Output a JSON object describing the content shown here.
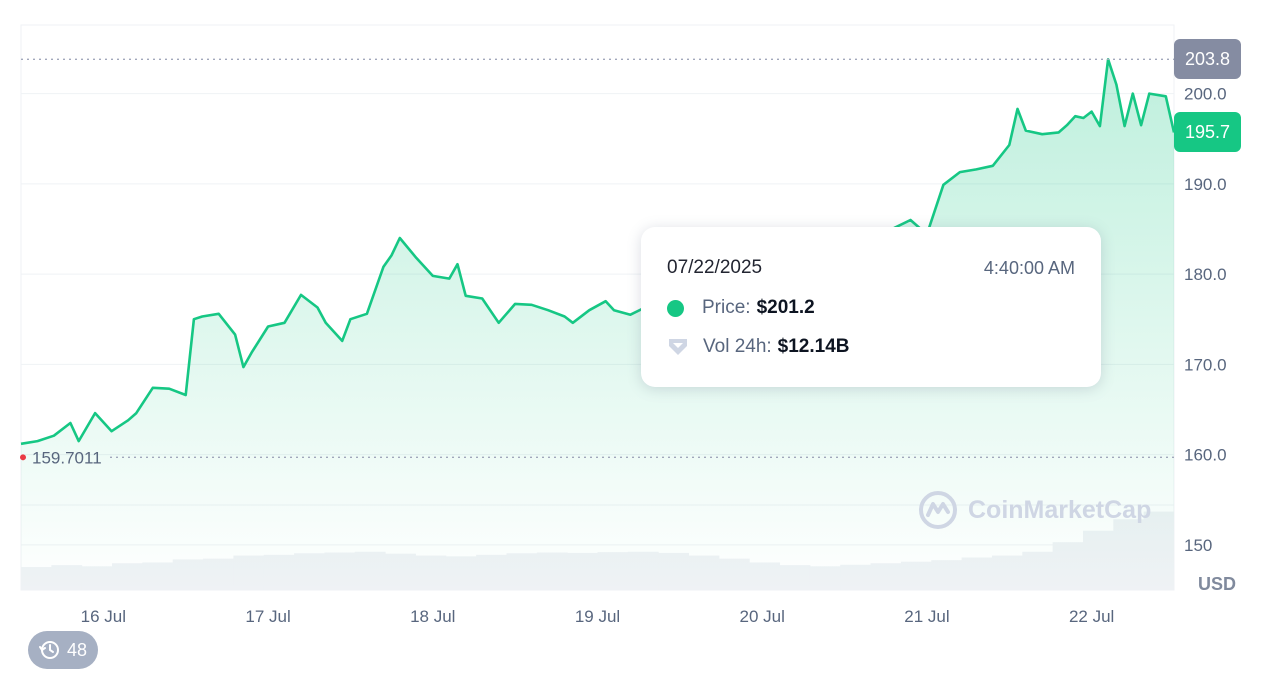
{
  "chart_data": {
    "type": "area",
    "title": "",
    "xlabel": "",
    "ylabel": "",
    "unit_label": "USD",
    "ylim": [
      145,
      207.6
    ],
    "y_ticks": [
      "150",
      "160.0",
      "170.0",
      "180.0",
      "190.0",
      "200.0"
    ],
    "y_tick_values": [
      150,
      160,
      170,
      180,
      190,
      200
    ],
    "x_tick_labels": [
      "16 Jul",
      "17 Jul",
      "18 Jul",
      "19 Jul",
      "20 Jul",
      "21 Jul",
      "22 Jul"
    ],
    "x_tick_positions": [
      0.5,
      1.5,
      2.5,
      3.5,
      4.5,
      5.5,
      6.5
    ],
    "xlim": [
      0,
      7.0
    ],
    "series": [
      {
        "x": [
          0.0,
          0.1,
          0.2,
          0.3,
          0.35,
          0.45,
          0.55,
          0.65,
          0.7,
          0.8,
          0.9,
          1.0,
          1.05,
          1.1,
          1.2,
          1.3,
          1.35,
          1.4,
          1.5,
          1.6,
          1.7,
          1.8,
          1.85,
          1.95,
          2.0,
          2.1,
          2.2,
          2.25,
          2.3,
          2.4,
          2.5,
          2.6,
          2.65,
          2.7,
          2.8,
          2.9,
          3.0,
          3.1,
          3.2,
          3.3,
          3.35,
          3.45,
          3.55,
          3.6,
          3.7,
          3.8,
          3.9,
          4.0,
          4.1,
          4.2,
          4.3,
          4.4,
          4.5,
          4.6,
          4.7,
          4.8,
          4.9,
          5.0,
          5.1,
          5.2,
          5.3,
          5.4,
          5.5,
          5.6,
          5.7,
          5.8,
          5.9,
          6.0,
          6.05,
          6.1,
          6.2,
          6.3,
          6.35,
          6.4,
          6.45,
          6.5,
          6.55,
          6.6,
          6.65,
          6.7,
          6.75,
          6.8,
          6.85,
          6.95,
          7.0
        ],
        "values": [
          161.2,
          161.5,
          162.1,
          163.5,
          161.5,
          164.6,
          162.6,
          163.8,
          164.6,
          167.4,
          167.3,
          166.6,
          175.0,
          175.3,
          175.6,
          173.3,
          169.7,
          171.3,
          174.2,
          174.6,
          177.7,
          176.3,
          174.6,
          172.6,
          175.0,
          175.6,
          180.8,
          182.1,
          184.0,
          181.8,
          179.8,
          179.5,
          181.1,
          177.6,
          177.3,
          174.6,
          176.7,
          176.6,
          176.0,
          175.3,
          174.6,
          176.0,
          177.0,
          176.0,
          175.5,
          176.4,
          177.2,
          176.3,
          177.0,
          177.8,
          178.3,
          179.5,
          180.4,
          181.2,
          182.8,
          182.0,
          183.4,
          183.0,
          184.2,
          184.8,
          185.1,
          186.0,
          184.4,
          189.9,
          191.3,
          191.6,
          192.0,
          194.3,
          198.3,
          195.9,
          195.5,
          195.7,
          196.5,
          197.5,
          197.3,
          198.0,
          196.4,
          203.8,
          201.0,
          196.4,
          200.0,
          196.5,
          200.0,
          199.7,
          195.7
        ]
      }
    ],
    "volume_relative": [
      0.6,
      0.65,
      0.62,
      0.7,
      0.72,
      0.8,
      0.82,
      0.9,
      0.92,
      0.96,
      0.98,
      1.0,
      0.95,
      0.9,
      0.88,
      0.92,
      0.96,
      0.98,
      0.97,
      0.99,
      1.0,
      0.97,
      0.9,
      0.82,
      0.72,
      0.65,
      0.62,
      0.66,
      0.7,
      0.74,
      0.78,
      0.85,
      0.9,
      1.0,
      1.25,
      1.55,
      1.85,
      2.05
    ],
    "current_price_label": "195.7",
    "high_label": "203.8",
    "open_label": "159.7011",
    "open_value": 159.7011,
    "high_value": 203.8,
    "current_value": 195.7,
    "line_color": "#16c784",
    "open_marker_color": "#ea3943",
    "high_badge_color": "#858ca2",
    "current_badge_color": "#16c784"
  },
  "tooltip": {
    "date": "07/22/2025",
    "time": "4:40:00 AM",
    "price_label": "Price:",
    "price_value": "$201.2",
    "volume_label": "Vol 24h:",
    "volume_value": "$12.14B"
  },
  "watermark": {
    "text": "CoinMarketCap",
    "icon": "coinmarketcap-logo-icon"
  },
  "history_badge": {
    "count": "48",
    "icon": "history-clock-icon"
  }
}
